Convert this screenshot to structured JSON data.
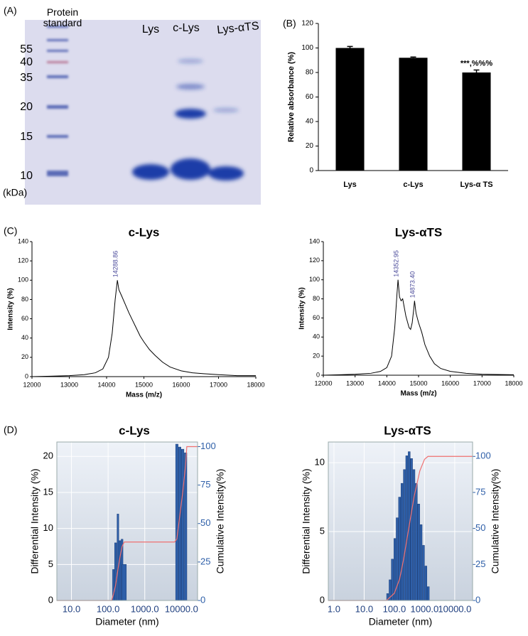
{
  "panel_labels": [
    "(A)",
    "(B)",
    "(C)",
    "(D)"
  ],
  "gel": {
    "standard_label": "Protein standard",
    "lane_labels": [
      "Lys",
      "c-Lys",
      "Lys-αTS"
    ],
    "marker_labels": [
      "55",
      "40",
      "35",
      "20",
      "15",
      "10"
    ],
    "unit": "(kDa)"
  },
  "chart_data": [
    {
      "type": "bar",
      "ylabel": "Relative absorbance (%)",
      "categories": [
        "Lys",
        "c-Lys",
        "Lys-α TS"
      ],
      "values": [
        100,
        92,
        80
      ],
      "errors": [
        1.2,
        0.6,
        2
      ],
      "color": "#000000",
      "ylim": [
        0,
        120
      ],
      "yticks": [
        0,
        20,
        40,
        60,
        80,
        100,
        120
      ],
      "annotations": [
        {
          "text": "***,%%%",
          "x": "Lys-α TS"
        }
      ]
    },
    {
      "type": "line",
      "title": "c-Lys",
      "xlabel": "Mass (m/z)",
      "ylabel": "Intensity (%)",
      "color": "#000000",
      "x": [
        12000,
        12500,
        13000,
        13400,
        13700,
        13900,
        14050,
        14150,
        14230,
        14288.86,
        14330,
        14400,
        14500,
        14600,
        14700,
        14800,
        14900,
        15000,
        15150,
        15300,
        15500,
        15700,
        16000,
        16300,
        16600,
        17000,
        17500,
        18000
      ],
      "values": [
        0,
        0.5,
        1,
        2,
        4,
        8,
        20,
        45,
        80,
        100,
        90,
        84,
        75,
        66,
        58,
        50,
        42,
        36,
        28,
        22,
        15,
        10,
        6,
        4,
        3,
        2,
        1,
        1
      ],
      "xlim": [
        12000,
        18000
      ],
      "xticks": [
        12000,
        13000,
        14000,
        15000,
        16000,
        17000,
        18000
      ],
      "ylim": [
        0,
        140
      ],
      "yticks": [
        0,
        20,
        40,
        60,
        80,
        100,
        120,
        140
      ],
      "annotations": [
        {
          "text": "14288.86",
          "x": 14288.86,
          "y": 100
        }
      ]
    },
    {
      "type": "line",
      "title": "Lys-αTS",
      "xlabel": "Mass (m/z)",
      "ylabel": "Intensity (%)",
      "color": "#000000",
      "x": [
        12000,
        12500,
        13000,
        13500,
        13800,
        14000,
        14150,
        14250,
        14320,
        14352.95,
        14400,
        14450,
        14500,
        14600,
        14700,
        14750,
        14800,
        14850,
        14873.4,
        14920,
        15000,
        15100,
        15200,
        15350,
        15500,
        15700,
        16000,
        16500,
        17000,
        18000
      ],
      "values": [
        0,
        0.5,
        1,
        2,
        4,
        8,
        20,
        50,
        85,
        100,
        82,
        78,
        80,
        62,
        50,
        48,
        55,
        70,
        78,
        65,
        55,
        45,
        32,
        20,
        12,
        7,
        4,
        2,
        1,
        0.5
      ],
      "xlim": [
        12000,
        18000
      ],
      "xticks": [
        12000,
        13000,
        14000,
        15000,
        16000,
        17000,
        18000
      ],
      "ylim": [
        0,
        140
      ],
      "yticks": [
        0,
        20,
        40,
        60,
        80,
        100,
        120,
        140
      ],
      "annotations": [
        {
          "text": "14352.95",
          "x": 14352.95,
          "y": 100
        },
        {
          "text": "14873.40",
          "x": 14873.4,
          "y": 78
        }
      ]
    },
    {
      "type": "histogram",
      "title": "c-Lys",
      "xlabel": "Diameter (nm)",
      "ylabel": "Differential Intensity (%)",
      "y2label": "Cumulative Intensity(%)",
      "xscale": "log",
      "grid": true,
      "color": "#2e5fa8",
      "x": [
        140,
        160,
        185,
        210,
        240,
        275,
        7500,
        9000,
        10800,
        13000
      ],
      "values": [
        4.3,
        8,
        12,
        8.3,
        8.5,
        5,
        21.7,
        21.3,
        21,
        20.5
      ],
      "cumulative": {
        "axis": "y2",
        "color": "#f07070",
        "x": [
          4,
          125,
          140,
          160,
          185,
          210,
          240,
          275,
          300,
          6500,
          7500,
          9000,
          10800,
          13000,
          14000,
          27500
        ],
        "values": [
          0,
          0,
          4,
          10,
          20,
          28,
          35,
          38,
          38,
          38,
          40,
          55,
          70,
          88,
          100,
          100
        ]
      },
      "xlim": [
        4,
        27500
      ],
      "xticks": [
        {
          "value": 10,
          "label": "10.0"
        },
        {
          "value": 100,
          "label": "100.0"
        },
        {
          "value": 1000,
          "label": "1000.0"
        },
        {
          "value": 10000,
          "label": "10000.0"
        }
      ],
      "ylim": [
        0,
        22
      ],
      "yticks": [
        0,
        5,
        10,
        15,
        20
      ],
      "y2lim": [
        0,
        103
      ],
      "y2ticks": [
        0,
        25,
        50,
        75,
        100
      ]
    },
    {
      "type": "histogram",
      "title": "Lys-αTS",
      "xlabel": "Diameter (nm)",
      "ylabel": "Differential Intensity (%)",
      "y2label": "Cumulative Intensity(%)",
      "xscale": "log",
      "grid": true,
      "color": "#2e5fa8",
      "x": [
        60,
        72,
        86,
        104,
        124,
        149,
        179,
        215,
        258,
        310,
        372,
        446,
        535,
        642,
        770,
        925,
        1110,
        1330
      ],
      "values": [
        0.5,
        1.5,
        3,
        4.5,
        6,
        7.5,
        8.5,
        9.5,
        10.5,
        10.8,
        10.3,
        9.5,
        8.5,
        7,
        5.5,
        4,
        2.5,
        1
      ],
      "cumulative": {
        "axis": "y2",
        "color": "#f07070",
        "x": [
          0.65,
          55,
          100,
          150,
          200,
          300,
          450,
          700,
          1000,
          1300,
          1500,
          39000
        ],
        "values": [
          0,
          0,
          5,
          15,
          28,
          50,
          72,
          90,
          98,
          100,
          100,
          100
        ]
      },
      "xlim": [
        0.65,
        39000
      ],
      "xticks": [
        {
          "value": 1,
          "label": "1.0"
        },
        {
          "value": 10,
          "label": "10.0"
        },
        {
          "value": 100,
          "label": "100.0"
        },
        {
          "value": 1000,
          "label": "1000.0"
        },
        {
          "value": 10000,
          "label": "10000.0"
        }
      ],
      "ylim": [
        0,
        11.5
      ],
      "yticks": [
        0,
        5,
        10
      ],
      "y2lim": [
        0,
        110
      ],
      "y2ticks": [
        0,
        25,
        50,
        75,
        100
      ]
    }
  ]
}
